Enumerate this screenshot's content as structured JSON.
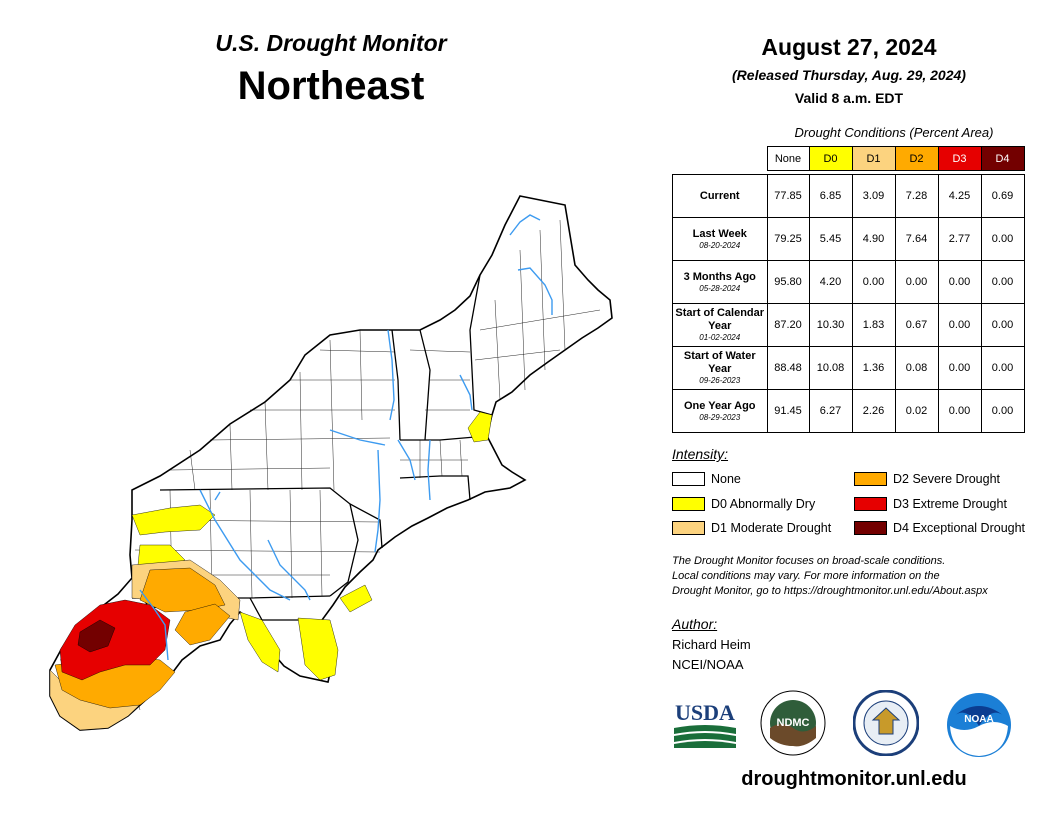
{
  "title": {
    "line1": "U.S. Drought Monitor",
    "line2": "Northeast"
  },
  "date": "August 27, 2024",
  "released": "(Released Thursday, Aug. 29, 2024)",
  "valid": "Valid 8 a.m. EDT",
  "table": {
    "caption": "Drought Conditions (Percent Area)",
    "headers": [
      "None",
      "D0",
      "D1",
      "D2",
      "D3",
      "D4"
    ],
    "header_colors": [
      "#ffffff",
      "#ffff00",
      "#fcd37f",
      "#ffaa00",
      "#e60000",
      "#730000"
    ],
    "header_text_colors": [
      "#000000",
      "#000000",
      "#000000",
      "#000000",
      "#ffffff",
      "#ffffff"
    ],
    "rows": [
      {
        "label": "Current",
        "date": "",
        "values": [
          "77.85",
          "6.85",
          "3.09",
          "7.28",
          "4.25",
          "0.69"
        ]
      },
      {
        "label": "Last Week",
        "date": "08-20-2024",
        "values": [
          "79.25",
          "5.45",
          "4.90",
          "7.64",
          "2.77",
          "0.00"
        ]
      },
      {
        "label": "3 Months Ago",
        "date": "05-28-2024",
        "values": [
          "95.80",
          "4.20",
          "0.00",
          "0.00",
          "0.00",
          "0.00"
        ]
      },
      {
        "label": "Start of Calendar Year",
        "date": "01-02-2024",
        "values": [
          "87.20",
          "10.30",
          "1.83",
          "0.67",
          "0.00",
          "0.00"
        ]
      },
      {
        "label": "Start of Water Year",
        "date": "09-26-2023",
        "values": [
          "88.48",
          "10.08",
          "1.36",
          "0.08",
          "0.00",
          "0.00"
        ]
      },
      {
        "label": "One Year Ago",
        "date": "08-29-2023",
        "values": [
          "91.45",
          "6.27",
          "2.26",
          "0.02",
          "0.00",
          "0.00"
        ]
      }
    ]
  },
  "legend": {
    "heading": "Intensity:",
    "items": [
      {
        "label": "None",
        "color": "#ffffff"
      },
      {
        "label": "D0 Abnormally Dry",
        "color": "#ffff00"
      },
      {
        "label": "D1 Moderate Drought",
        "color": "#fcd37f"
      },
      {
        "label": "D2 Severe Drought",
        "color": "#ffaa00"
      },
      {
        "label": "D3 Extreme Drought",
        "color": "#e60000"
      },
      {
        "label": "D4 Exceptional Drought",
        "color": "#730000"
      }
    ]
  },
  "note": {
    "line1": "The Drought Monitor focuses on broad-scale conditions.",
    "line2": "Local conditions may vary. For more information on the",
    "line3": "Drought Monitor, go to https://droughtmonitor.unl.edu/About.aspx"
  },
  "author": {
    "heading": "Author:",
    "name": "Richard Heim",
    "org": "NCEI/NOAA"
  },
  "logos": {
    "usda": "USDA",
    "ndmc": "NDMC",
    "noaa": "NOAA",
    "ndmc_arc_text": "NATIONAL DROUGHT MITIGATION CENTER"
  },
  "website": "droughtmonitor.unl.edu",
  "map_colors": {
    "river": "#3d9bf0",
    "none": "#ffffff",
    "d0": "#ffff00",
    "d1": "#fcd37f",
    "d2": "#ffaa00",
    "d3": "#e60000",
    "d4": "#730000"
  }
}
